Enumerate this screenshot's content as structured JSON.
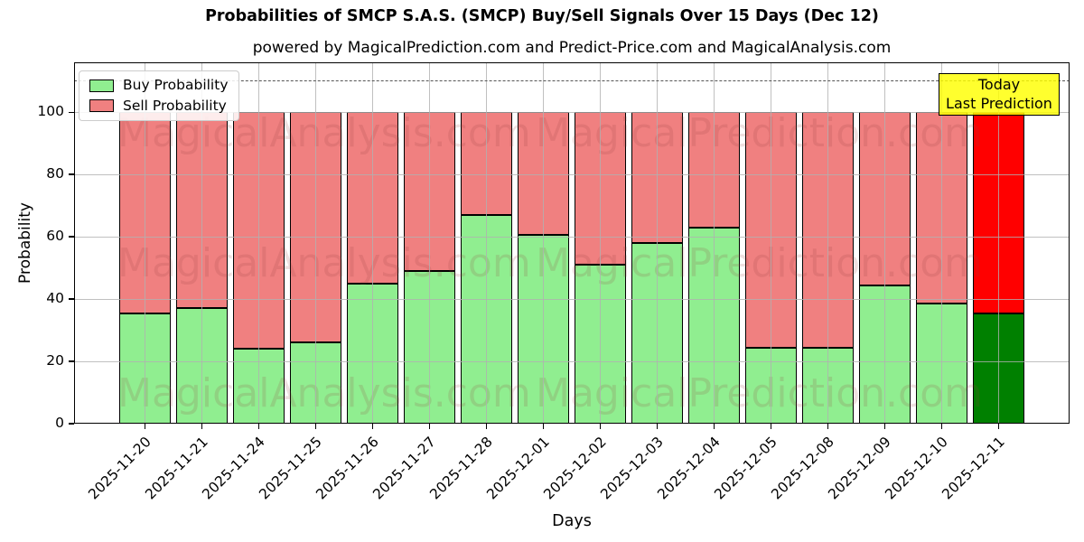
{
  "figure": {
    "title": "Probabilities of SMCP S.A.S. (SMCP) Buy/Sell Signals Over 15 Days (Dec 12)",
    "subtitle": "powered by MagicalPrediction.com and Predict-Price.com and MagicalAnalysis.com"
  },
  "watermark": {
    "left_text": "MagicalAnalysis.com",
    "right_text": "MagicalPrediction.com"
  },
  "annotation_box": {
    "line1": "Today",
    "line2": "Last Prediction",
    "bg_color": "#ffff00",
    "border_color": "#000000"
  },
  "legend": {
    "items": [
      {
        "label": "Buy Probability",
        "color": "#90ee90"
      },
      {
        "label": "Sell Probability",
        "color": "#f08080"
      }
    ]
  },
  "colors": {
    "buy": "#90ee90",
    "sell": "#f08080",
    "final_buy": "#008000",
    "final_sell": "#ff0000",
    "bar_edge": "#000000",
    "grid": "#b0b0b0",
    "dashed_line": "#555555"
  },
  "chart_data": {
    "type": "bar",
    "stacked": true,
    "title": "Probabilities of SMCP S.A.S. (SMCP) Buy/Sell Signals Over 15 Days (Dec 12)",
    "xlabel": "Days",
    "ylabel": "Probability",
    "categories": [
      "2025-11-20",
      "2025-11-21",
      "2025-11-24",
      "2025-11-25",
      "2025-11-26",
      "2025-11-27",
      "2025-11-28",
      "2025-12-01",
      "2025-12-02",
      "2025-12-03",
      "2025-12-04",
      "2025-12-05",
      "2025-12-08",
      "2025-12-09",
      "2025-12-10",
      "2025-12-11"
    ],
    "series": [
      {
        "name": "Buy Probability",
        "color": "#90ee90",
        "values": [
          35.5,
          37,
          24,
          26,
          45,
          49,
          67,
          60.5,
          51,
          58,
          63,
          24.5,
          24.5,
          44.5,
          38.5,
          35.5
        ]
      },
      {
        "name": "Sell Probability",
        "color": "#f08080",
        "values": [
          64.5,
          63,
          76,
          74,
          55,
          51,
          33,
          39.5,
          49,
          42,
          37,
          75.5,
          75.5,
          55.5,
          61.5,
          64.5
        ]
      }
    ],
    "bar_total": 100,
    "final_bar_colors": {
      "buy": "#008000",
      "sell": "#ff0000"
    },
    "ylim": [
      0,
      116
    ],
    "yticks": [
      0,
      20,
      40,
      60,
      80,
      100
    ],
    "dashed_line_y": 110,
    "grid": true,
    "legend_position": "upper left",
    "x_tick_rotation": 45
  }
}
